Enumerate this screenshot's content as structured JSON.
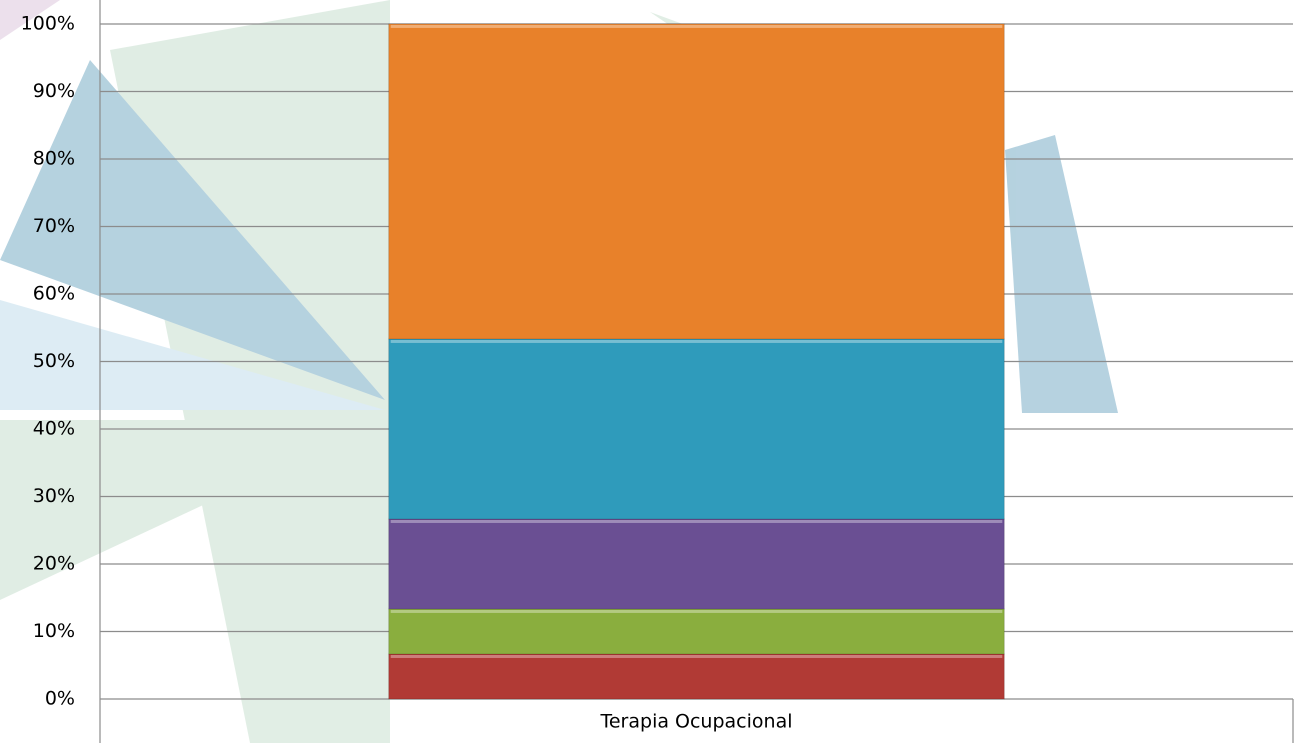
{
  "chart_data": {
    "type": "stacked-bar",
    "categories": [
      "Terapia Ocupacional"
    ],
    "series": [
      {
        "color": "#b13a35",
        "values": [
          6.67
        ]
      },
      {
        "color": "#8aae3e",
        "values": [
          6.67
        ]
      },
      {
        "color": "#6a4f93",
        "values": [
          13.33
        ]
      },
      {
        "color": "#2f9bbb",
        "values": [
          26.67
        ]
      },
      {
        "color": "#e8812a",
        "values": [
          46.67
        ]
      }
    ],
    "ylim": [
      0,
      100
    ],
    "yticks": [
      {
        "value": 0,
        "label": "0%"
      },
      {
        "value": 10,
        "label": "10%"
      },
      {
        "value": 20,
        "label": "20%"
      },
      {
        "value": 30,
        "label": "30%"
      },
      {
        "value": 40,
        "label": "40%"
      },
      {
        "value": 50,
        "label": "50%"
      },
      {
        "value": 60,
        "label": "60%"
      },
      {
        "value": 70,
        "label": "70%"
      },
      {
        "value": 80,
        "label": "80%"
      },
      {
        "value": 90,
        "label": "90%"
      },
      {
        "value": 100,
        "label": "100%"
      }
    ],
    "grid": true
  }
}
